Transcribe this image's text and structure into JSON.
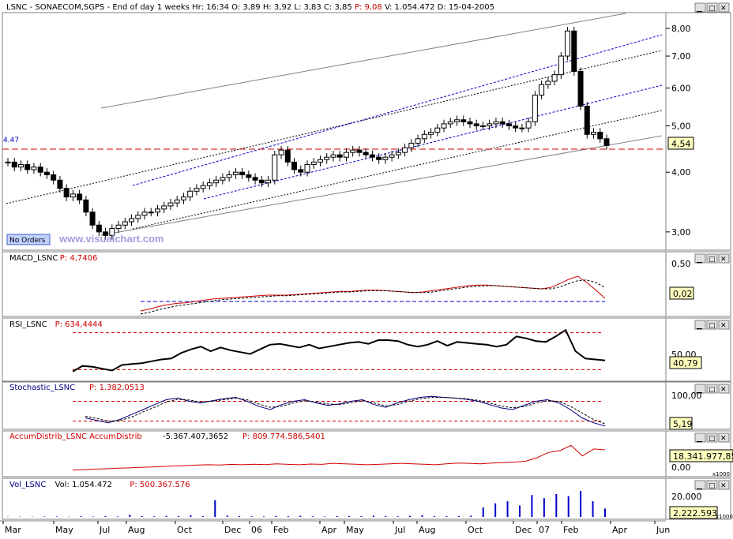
{
  "header": {
    "symbol": "LSNC",
    "name": "SONAECOM,SGPS",
    "period": "End of day 1 weeks",
    "hr": "Hr: 16:34",
    "open": "O: 3,89",
    "high": "H: 3,92",
    "low": "L: 3,83",
    "close": "C: 3,85",
    "p": "P: 9,08",
    "volume": "V: 1.054.472",
    "date": "D: 15-04-2005"
  },
  "controls": {
    "minimize": "▁",
    "restore": "□",
    "close": "✕"
  },
  "watermark": "www.visualchart.com",
  "no_orders": "No Orders",
  "colors": {
    "accent_red": "#d00000",
    "guide_blue": "#0000cc",
    "panel_border": "#808080",
    "value_box_bg": "#ffffc0"
  },
  "chart_data": [
    {
      "type": "candlestick",
      "name": "Price",
      "title": "",
      "y_scale": "log",
      "ylim": [
        2.8,
        8.5
      ],
      "yticks": [
        "8,00",
        "7,00",
        "6,00",
        "5,00",
        "4,00",
        "3,00"
      ],
      "y_tick_values": [
        8,
        7,
        6,
        5,
        4,
        3
      ],
      "horizontal_line": {
        "value": 4.47,
        "label": "4.47"
      },
      "last_value_label": "4,54",
      "approx_close_series": [
        4.2,
        4.1,
        4.15,
        4.05,
        4.1,
        4.0,
        3.95,
        3.85,
        3.7,
        3.55,
        3.6,
        3.5,
        3.3,
        3.1,
        3.0,
        2.95,
        3.05,
        3.1,
        3.15,
        3.2,
        3.25,
        3.3,
        3.3,
        3.35,
        3.4,
        3.45,
        3.5,
        3.55,
        3.65,
        3.7,
        3.75,
        3.8,
        3.85,
        3.9,
        3.95,
        4.0,
        3.95,
        3.9,
        3.85,
        3.8,
        3.85,
        4.35,
        4.45,
        4.2,
        4.05,
        4.0,
        4.15,
        4.2,
        4.25,
        4.3,
        4.35,
        4.3,
        4.4,
        4.45,
        4.4,
        4.35,
        4.3,
        4.25,
        4.3,
        4.35,
        4.4,
        4.5,
        4.6,
        4.7,
        4.8,
        4.85,
        4.95,
        5.05,
        5.1,
        5.15,
        5.1,
        5.05,
        5.0,
        5.0,
        5.05,
        5.1,
        5.05,
        5.0,
        4.95,
        4.95,
        5.1,
        5.8,
        6.1,
        6.2,
        6.4,
        7.0,
        7.9,
        6.5,
        5.5,
        4.8,
        4.85,
        4.7,
        4.55
      ]
    },
    {
      "type": "line",
      "name": "MACD_LSNC",
      "header_label": "MACD_LSNC",
      "header_value": "P: 4,7406",
      "top_tick": "0,50",
      "last_value_label": "0,02",
      "ylim": [
        -0.2,
        0.6
      ],
      "zero_line": 0.0,
      "series": [
        {
          "name": "MACD",
          "color": "#d00000",
          "style": "solid",
          "values": [
            -0.15,
            -0.12,
            -0.08,
            -0.05,
            -0.03,
            -0.02,
            0.0,
            0.02,
            0.04,
            0.05,
            0.06,
            0.07,
            0.08,
            0.09,
            0.1,
            0.1,
            0.1,
            0.11,
            0.12,
            0.13,
            0.14,
            0.15,
            0.16,
            0.16,
            0.17,
            0.18,
            0.18,
            0.17,
            0.16,
            0.15,
            0.14,
            0.15,
            0.17,
            0.19,
            0.21,
            0.23,
            0.25,
            0.26,
            0.26,
            0.25,
            0.24,
            0.23,
            0.22,
            0.21,
            0.2,
            0.22,
            0.28,
            0.35,
            0.4,
            0.3,
            0.18,
            0.05
          ]
        },
        {
          "name": "Signal",
          "color": "#000000",
          "style": "dashed",
          "values": [
            -0.2,
            -0.17,
            -0.13,
            -0.1,
            -0.07,
            -0.05,
            -0.03,
            -0.01,
            0.01,
            0.03,
            0.04,
            0.05,
            0.06,
            0.07,
            0.08,
            0.09,
            0.09,
            0.1,
            0.11,
            0.12,
            0.13,
            0.14,
            0.15,
            0.15,
            0.16,
            0.17,
            0.17,
            0.17,
            0.16,
            0.15,
            0.14,
            0.14,
            0.15,
            0.17,
            0.19,
            0.21,
            0.23,
            0.24,
            0.25,
            0.25,
            0.24,
            0.23,
            0.22,
            0.21,
            0.2,
            0.2,
            0.23,
            0.28,
            0.33,
            0.34,
            0.3,
            0.22
          ]
        }
      ]
    },
    {
      "type": "line",
      "name": "RSI_LSNC",
      "header_label": "RSI_LSNC",
      "header_value": "P: 634,4444",
      "top_tick": "50,00",
      "last_value_label": "40,79",
      "ylim": [
        20,
        80
      ],
      "reference_lines": [
        70,
        30
      ],
      "series": [
        {
          "name": "RSI",
          "color": "#000000",
          "style": "solid",
          "values": [
            28,
            34,
            33,
            31,
            29,
            35,
            36,
            37,
            39,
            41,
            42,
            48,
            52,
            55,
            50,
            54,
            51,
            49,
            47,
            52,
            57,
            58,
            56,
            54,
            57,
            53,
            55,
            57,
            59,
            60,
            58,
            62,
            62,
            61,
            57,
            55,
            57,
            61,
            56,
            60,
            59,
            58,
            57,
            55,
            57,
            66,
            64,
            61,
            60,
            66,
            73,
            50,
            42,
            41,
            40
          ]
        }
      ]
    },
    {
      "type": "line",
      "name": "Stochastic_LSNC",
      "header_label": "Stochastic_LSNC",
      "header_value": "P: 1.382,0513",
      "top_tick": "100,00",
      "last_value_label": "5,19",
      "ylim": [
        0,
        110
      ],
      "reference_lines": [
        80,
        20
      ],
      "series": [
        {
          "name": "%K",
          "color": "#000080",
          "style": "solid",
          "values": [
            30,
            22,
            15,
            25,
            40,
            55,
            70,
            85,
            90,
            80,
            75,
            82,
            88,
            92,
            80,
            65,
            55,
            70,
            80,
            85,
            75,
            68,
            72,
            80,
            85,
            70,
            62,
            75,
            85,
            92,
            95,
            92,
            90,
            86,
            80,
            70,
            60,
            55,
            68,
            80,
            85,
            75,
            55,
            30,
            15,
            5
          ]
        },
        {
          "name": "%D",
          "color": "#000000",
          "style": "dashed",
          "values": [
            35,
            28,
            20,
            22,
            32,
            48,
            62,
            78,
            86,
            84,
            78,
            80,
            85,
            90,
            85,
            72,
            62,
            65,
            75,
            82,
            78,
            72,
            70,
            76,
            82,
            75,
            66,
            70,
            80,
            88,
            92,
            92,
            90,
            88,
            83,
            75,
            66,
            60,
            64,
            74,
            82,
            80,
            65,
            45,
            25,
            12
          ]
        }
      ]
    },
    {
      "type": "line",
      "name": "AccumDistrib_LSNC",
      "header_label": "AccumDistrib_LSNC AccumDistrib",
      "header_value": "-5.367.407,3652",
      "header_p": "P: 809.774.586,5401",
      "ticks": [
        "18.341.977,85",
        "0,00"
      ],
      "scale_note": "x1000",
      "series": [
        {
          "name": "AccumDistrib",
          "color": "#d00000",
          "style": "solid",
          "values": [
            -2,
            -1.8,
            -1.5,
            -1.3,
            -1.0,
            -0.8,
            -0.5,
            -0.3,
            0,
            0.3,
            0.5,
            0.8,
            1.0,
            0.8,
            1.2,
            1.0,
            1.3,
            1.1,
            1.5,
            1.2,
            1.0,
            1.4,
            1.2,
            1.8,
            1.5,
            1.3,
            1.0,
            1.2,
            1.5,
            1.8,
            1.5,
            1.3,
            1.0,
            1.5,
            2.0,
            1.8,
            1.5,
            2.0,
            2.2,
            2.5,
            3.0,
            5.0,
            8.0,
            9.0,
            12.0,
            6.0,
            10.0,
            9.5
          ]
        }
      ]
    },
    {
      "type": "bar",
      "name": "Vol_LSNC",
      "header_label": "Vol_LSNC",
      "header_value": "Vol: 1.054.472",
      "header_p": "P: 500.367.576",
      "ticks": [
        "20.000",
        "2.222.593"
      ],
      "scale_note": "x1000",
      "series": [
        {
          "name": "Volume",
          "color": "#0000cc",
          "values": [
            200,
            300,
            250,
            400,
            500,
            300,
            600,
            400,
            700,
            500,
            2000,
            800,
            600,
            1000,
            900,
            1500,
            700,
            16000,
            1200,
            800,
            600,
            500,
            900,
            700,
            1100,
            600,
            500,
            800,
            900,
            700,
            1200,
            800,
            600,
            1000,
            1500,
            900,
            700,
            800,
            1200,
            9000,
            13000,
            15000,
            11000,
            21000,
            18000,
            22000,
            20000,
            25000,
            15000,
            8000
          ]
        }
      ]
    }
  ],
  "x_axis": {
    "labels": [
      "Mar",
      "May",
      "Jul",
      "Aug",
      "Oct",
      "Dec",
      "06",
      "Feb",
      "Apr",
      "May",
      "Jul",
      "Aug",
      "Oct",
      "Dec",
      "07",
      "Feb",
      "Apr",
      "Jun"
    ]
  }
}
